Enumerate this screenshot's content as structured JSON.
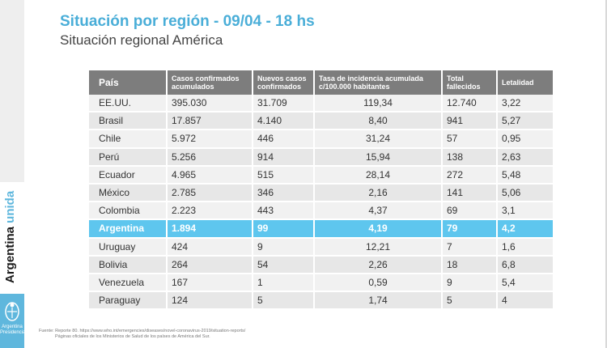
{
  "header": {
    "title": "Situación por región - 09/04 - 18 hs",
    "subtitle": "Situación regional América"
  },
  "brand": {
    "vertical_text_1": "Argentina",
    "vertical_text_2": "unida",
    "logo_text_1": "Argentina",
    "logo_text_2": "Presidencia",
    "accent_color": "#5fb7dd"
  },
  "table": {
    "headers": [
      "País",
      "Casos confirmados acumulados",
      "Nuevos casos confirmados",
      "Tasa de incidencia acumulada c/100.000 habitantes",
      "Total fallecidos",
      "Letalidad"
    ],
    "rows": [
      {
        "country": "EE.UU.",
        "cases": "395.030",
        "new_cases": "31.709",
        "rate": "119,34",
        "deaths": "12.740",
        "lethality": "3,22"
      },
      {
        "country": "Brasil",
        "cases": "17.857",
        "new_cases": "4.140",
        "rate": "8,40",
        "deaths": "941",
        "lethality": "5,27"
      },
      {
        "country": "Chile",
        "cases": "5.972",
        "new_cases": "446",
        "rate": "31,24",
        "deaths": "57",
        "lethality": "0,95"
      },
      {
        "country": "Perú",
        "cases": "5.256",
        "new_cases": "914",
        "rate": "15,94",
        "deaths": "138",
        "lethality": "2,63"
      },
      {
        "country": "Ecuador",
        "cases": "4.965",
        "new_cases": "515",
        "rate": "28,14",
        "deaths": "272",
        "lethality": "5,48"
      },
      {
        "country": "México",
        "cases": "2.785",
        "new_cases": "346",
        "rate": "2,16",
        "deaths": "141",
        "lethality": "5,06"
      },
      {
        "country": "Colombia",
        "cases": "2.223",
        "new_cases": "443",
        "rate": "4,37",
        "deaths": "69",
        "lethality": "3,1"
      },
      {
        "country": "Argentina",
        "cases": "1.894",
        "new_cases": "99",
        "rate": "4,19",
        "deaths": "79",
        "lethality": "4,2"
      },
      {
        "country": "Uruguay",
        "cases": "424",
        "new_cases": "9",
        "rate": "12,21",
        "deaths": "7",
        "lethality": "1,6"
      },
      {
        "country": "Bolivia",
        "cases": "264",
        "new_cases": "54",
        "rate": "2,26",
        "deaths": "18",
        "lethality": "6,8"
      },
      {
        "country": "Venezuela",
        "cases": "167",
        "new_cases": "1",
        "rate": "0,59",
        "deaths": "9",
        "lethality": "5,4"
      },
      {
        "country": "Paraguay",
        "cases": "124",
        "new_cases": "5",
        "rate": "1,74",
        "deaths": "5",
        "lethality": "4"
      }
    ],
    "highlight_row": "Argentina",
    "highlight_color": "#5ec6ee"
  },
  "footnote": {
    "line1": "Fuente: Reporte 80. https://www.who.int/emergencies/diseases/novel-coronavirus-2019/situation-reports/",
    "line2": "Páginas oficiales de los Ministerios de Salud de los países de América del Sur."
  }
}
